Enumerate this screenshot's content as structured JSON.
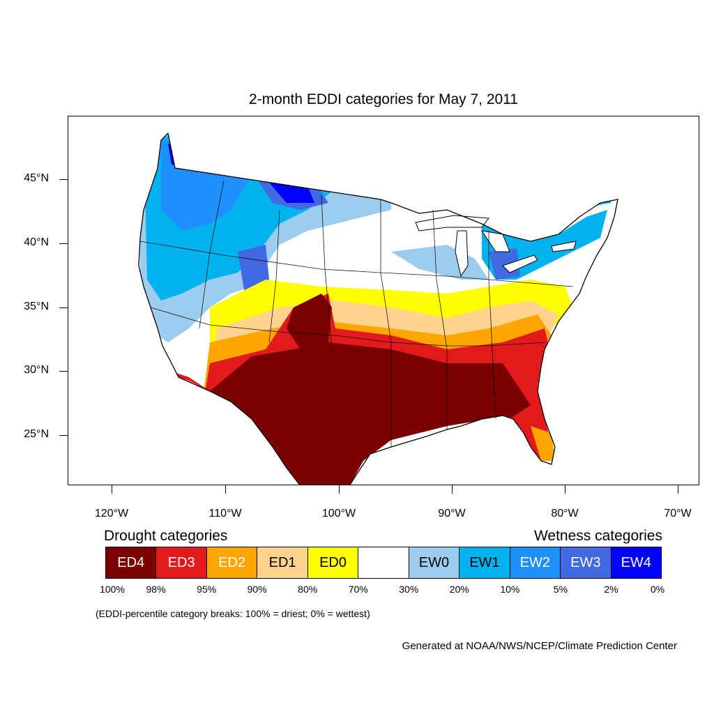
{
  "title": "2-month EDDI categories for May 7, 2011",
  "lat_labels": [
    "45°N",
    "40°N",
    "35°N",
    "30°N",
    "25°N"
  ],
  "lon_labels": [
    "120°W",
    "110°W",
    "100°W",
    "90°W",
    "80°W",
    "70°W"
  ],
  "legend": {
    "drought_heading": "Drought categories",
    "wetness_heading": "Wetness categories",
    "categories": [
      {
        "label": "ED4",
        "color": "#7a0000",
        "text_color": "#ffffff"
      },
      {
        "label": "ED3",
        "color": "#e31a1c",
        "text_color": "#ffffff"
      },
      {
        "label": "ED2",
        "color": "#ffa500",
        "text_color": "#ffffff"
      },
      {
        "label": "ED1",
        "color": "#fdd38d",
        "text_color": "#000000"
      },
      {
        "label": "ED0",
        "color": "#ffff00",
        "text_color": "#000000"
      },
      {
        "label": "",
        "color": "#ffffff",
        "text_color": "#000000"
      },
      {
        "label": "EW0",
        "color": "#9dcdee",
        "text_color": "#000000"
      },
      {
        "label": "EW1",
        "color": "#00b2ee",
        "text_color": "#000000"
      },
      {
        "label": "EW2",
        "color": "#1e90ff",
        "text_color": "#ffffff"
      },
      {
        "label": "EW3",
        "color": "#4169e1",
        "text_color": "#ffffff"
      },
      {
        "label": "EW4",
        "color": "#0000ff",
        "text_color": "#ffffff"
      }
    ],
    "breaks": [
      "100%",
      "98%",
      "95%",
      "90%",
      "80%",
      "70%",
      "30%",
      "20%",
      "10%",
      "5%",
      "2%",
      "0%"
    ]
  },
  "note": "(EDDI-percentile category breaks: 100% = driest; 0% = wettest)",
  "credit": "Generated at NOAA/NWS/NCEP/Climate Prediction Center"
}
